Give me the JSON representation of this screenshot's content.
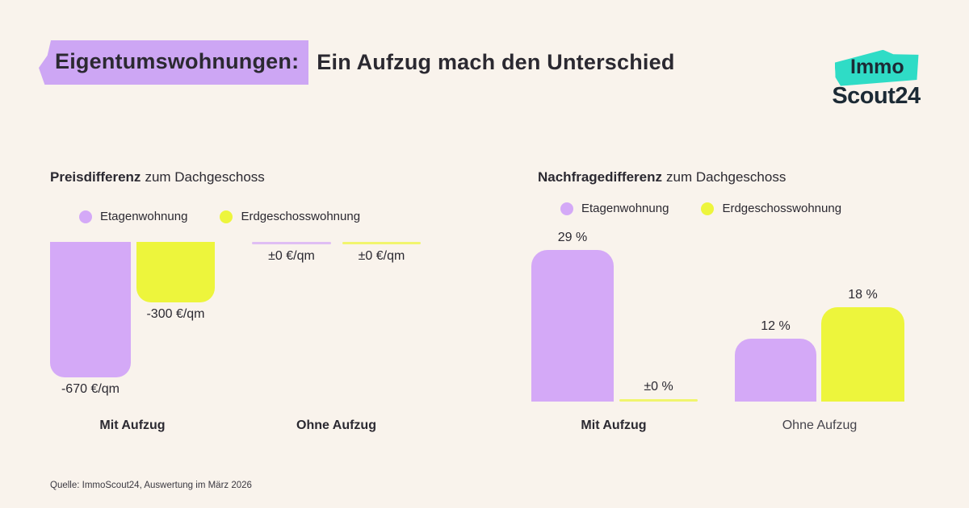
{
  "header": {
    "title_highlight": "Eigentumswohnungen:",
    "title_rest": "Ein Aufzug mach den Unterschied"
  },
  "logo": {
    "immo": "Immo",
    "scout": "Scout24"
  },
  "colors": {
    "background": "#F9F3EC",
    "purple": "#D4A9F7",
    "yellow": "#EDF53C",
    "highlight": "#CDA6F4",
    "teal": "#2FDCC6",
    "text": "#26242C"
  },
  "chart_data": [
    {
      "type": "bar",
      "title_bold": "Preisdifferenz",
      "title_rest": "zum Dachgeschoss",
      "unit": "€/qm",
      "direction": "down",
      "ylim": [
        -700,
        0
      ],
      "legend": [
        {
          "label": "Etagenwohnung",
          "color": "#D4A9F7"
        },
        {
          "label": "Erdgeschosswohnung",
          "color": "#EDF53C"
        }
      ],
      "categories": [
        "Mit Aufzug",
        "Ohne Aufzug"
      ],
      "groups": [
        {
          "category": "Mit Aufzug",
          "bars": [
            {
              "series": "Etagenwohnung",
              "value": -670,
              "label": "-670 €/qm"
            },
            {
              "series": "Erdgeschosswohnung",
              "value": -300,
              "label": "-300 €/qm"
            }
          ]
        },
        {
          "category": "Ohne Aufzug",
          "bars": [
            {
              "series": "Etagenwohnung",
              "value": 0,
              "label": "±0 €/qm"
            },
            {
              "series": "Erdgeschosswohnung",
              "value": 0,
              "label": "±0 €/qm"
            }
          ]
        }
      ]
    },
    {
      "type": "bar",
      "title_bold": "Nachfragedifferenz",
      "title_rest": "zum Dachgeschoss",
      "unit": "%",
      "direction": "up",
      "ylim": [
        0,
        30
      ],
      "legend": [
        {
          "label": "Etagenwohnung",
          "color": "#D4A9F7"
        },
        {
          "label": "Erdgeschosswohnung",
          "color": "#EDF53C"
        }
      ],
      "categories": [
        "Mit Aufzug",
        "Ohne Aufzug"
      ],
      "groups": [
        {
          "category": "Mit Aufzug",
          "bars": [
            {
              "series": "Etagenwohnung",
              "value": 29,
              "label": "29 %"
            },
            {
              "series": "Erdgeschosswohnung",
              "value": 0,
              "label": "±0 %"
            }
          ]
        },
        {
          "category": "Ohne Aufzug",
          "bars": [
            {
              "series": "Etagenwohnung",
              "value": 12,
              "label": "12 %"
            },
            {
              "series": "Erdgeschosswohnung",
              "value": 18,
              "label": "18 %"
            }
          ]
        }
      ]
    }
  ],
  "footer": {
    "source": "Quelle: ImmoScout24, Auswertung im März 2026"
  }
}
